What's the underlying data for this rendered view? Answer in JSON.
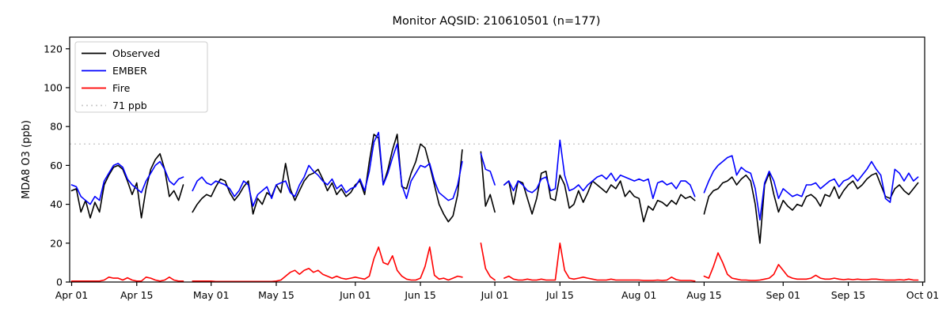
{
  "colors": {
    "observed": "#000000",
    "ember": "#0000ff",
    "fire": "#ff0000",
    "threshold": "#c9c9c9",
    "axis": "#000000",
    "legend_border": "#cccccc",
    "background": "#ffffff"
  },
  "legend": {
    "entries": [
      {
        "label": "Observed",
        "color": "#000000",
        "style": "solid"
      },
      {
        "label": "EMBER",
        "color": "#0000ff",
        "style": "solid"
      },
      {
        "label": "Fire",
        "color": "#ff0000",
        "style": "solid"
      },
      {
        "label": "71 ppb",
        "color": "#c9c9c9",
        "style": "dotted"
      }
    ],
    "position": "upper left"
  },
  "chart_data": {
    "type": "line",
    "title": "Monitor AQSID: 210610501 (n=177)",
    "xlabel": "",
    "ylabel": "MDA8 O3 (ppb)",
    "ylim": [
      0,
      126
    ],
    "yticks": [
      0,
      20,
      40,
      60,
      80,
      100,
      120
    ],
    "grid": false,
    "threshold_line": {
      "value": 71,
      "label": "71 ppb",
      "style": "dotted"
    },
    "x_start_date": "Apr 01",
    "x_end_date": "Oct 01",
    "x_days_total": 183,
    "xticks": [
      {
        "label": "Apr 01",
        "day": 0
      },
      {
        "label": "Apr 15",
        "day": 14
      },
      {
        "label": "May 01",
        "day": 30
      },
      {
        "label": "May 15",
        "day": 44
      },
      {
        "label": "Jun 01",
        "day": 61
      },
      {
        "label": "Jun 15",
        "day": 75
      },
      {
        "label": "Jul 01",
        "day": 91
      },
      {
        "label": "Jul 15",
        "day": 105
      },
      {
        "label": "Aug 01",
        "day": 122
      },
      {
        "label": "Aug 15",
        "day": 136
      },
      {
        "label": "Sep 01",
        "day": 153
      },
      {
        "label": "Sep 15",
        "day": 167
      },
      {
        "label": "Oct 01",
        "day": 183
      }
    ],
    "series": [
      {
        "name": "Observed",
        "color": "#000000",
        "values": [
          47,
          48,
          36,
          42,
          33,
          41,
          36,
          50,
          55,
          59,
          60,
          58,
          52,
          45,
          51,
          33,
          48,
          58,
          63,
          66,
          58,
          44,
          47,
          42,
          50,
          null,
          36,
          40,
          43,
          45,
          44,
          49,
          53,
          52,
          46,
          42,
          45,
          49,
          52,
          35,
          43,
          40,
          46,
          44,
          50,
          46,
          61,
          48,
          42,
          47,
          52,
          55,
          56,
          58,
          53,
          47,
          51,
          45,
          48,
          44,
          46,
          50,
          52,
          45,
          62,
          76,
          74,
          50,
          58,
          68,
          76,
          49,
          48,
          56,
          62,
          71,
          69,
          60,
          50,
          40,
          35,
          31,
          34,
          45,
          68,
          null,
          null,
          null,
          67,
          39,
          45,
          36,
          null,
          50,
          52,
          40,
          52,
          51,
          43,
          35,
          43,
          56,
          57,
          43,
          42,
          55,
          50,
          38,
          40,
          47,
          41,
          46,
          52,
          50,
          48,
          46,
          50,
          48,
          52,
          44,
          47,
          44,
          43,
          31,
          39,
          37,
          42,
          41,
          39,
          42,
          40,
          45,
          43,
          44,
          42,
          null,
          35,
          44,
          47,
          48,
          51,
          52,
          54,
          50,
          53,
          55,
          52,
          40,
          20,
          50,
          56,
          45,
          36,
          42,
          39,
          37,
          40,
          39,
          44,
          45,
          43,
          39,
          45,
          44,
          49,
          43,
          47,
          50,
          52,
          48,
          50,
          53,
          55,
          56,
          50,
          44,
          43,
          48,
          50,
          47,
          45,
          48,
          51
        ]
      },
      {
        "name": "EMBER",
        "color": "#0000ff",
        "values": [
          50,
          49,
          44,
          42,
          40,
          44,
          42,
          52,
          56,
          60,
          61,
          59,
          53,
          50,
          48,
          46,
          52,
          56,
          60,
          62,
          58,
          52,
          50,
          53,
          54,
          null,
          47,
          52,
          54,
          51,
          50,
          52,
          51,
          50,
          48,
          44,
          47,
          52,
          50,
          39,
          45,
          47,
          49,
          43,
          50,
          51,
          52,
          46,
          44,
          50,
          54,
          60,
          57,
          55,
          52,
          50,
          53,
          48,
          50,
          46,
          48,
          49,
          53,
          47,
          57,
          72,
          77,
          50,
          56,
          64,
          71,
          50,
          43,
          52,
          56,
          60,
          59,
          61,
          52,
          46,
          44,
          42,
          43,
          50,
          62,
          null,
          null,
          null,
          66,
          58,
          57,
          50,
          null,
          50,
          52,
          47,
          52,
          50,
          47,
          46,
          48,
          53,
          54,
          47,
          48,
          73,
          55,
          47,
          48,
          50,
          47,
          50,
          52,
          54,
          55,
          53,
          56,
          52,
          55,
          54,
          53,
          52,
          53,
          52,
          53,
          43,
          51,
          52,
          50,
          51,
          48,
          52,
          52,
          50,
          44,
          null,
          46,
          52,
          57,
          60,
          62,
          64,
          65,
          55,
          59,
          57,
          56,
          48,
          32,
          51,
          57,
          52,
          43,
          48,
          46,
          44,
          45,
          44,
          50,
          50,
          51,
          48,
          50,
          52,
          53,
          49,
          52,
          53,
          55,
          52,
          55,
          58,
          62,
          58,
          55,
          43,
          41,
          58,
          56,
          52,
          56,
          52,
          54
        ]
      },
      {
        "name": "Fire",
        "color": "#ff0000",
        "values": [
          0.5,
          0.5,
          0.5,
          0.5,
          0.5,
          0.5,
          0.5,
          1,
          2.5,
          2,
          2,
          1,
          2.2,
          1,
          0.5,
          0.5,
          2.5,
          2,
          1,
          0.5,
          1,
          2.5,
          1,
          0.5,
          0.5,
          null,
          0.5,
          0.5,
          0.5,
          0.5,
          0.5,
          0.3,
          0.3,
          0.3,
          0.3,
          0.3,
          0.3,
          0.3,
          0.3,
          0.3,
          0.3,
          0.3,
          0.3,
          0.3,
          0.5,
          1,
          3,
          5,
          6,
          4,
          6,
          7,
          5,
          6,
          4,
          3,
          2,
          3,
          2,
          1.5,
          2,
          2.5,
          2,
          1.5,
          3,
          12,
          18,
          10,
          9,
          13.5,
          6,
          3,
          1.5,
          1,
          1,
          2,
          8,
          18,
          3.5,
          1.5,
          2,
          1,
          2,
          3,
          2.5,
          null,
          null,
          null,
          20,
          7,
          2.8,
          1,
          null,
          2,
          3,
          1.5,
          1,
          1,
          1.5,
          1,
          1,
          1.5,
          1,
          1,
          1,
          20,
          6,
          2,
          1.5,
          2,
          2.5,
          2,
          1.5,
          1,
          1,
          1,
          1.5,
          1,
          1,
          1,
          1,
          1,
          1,
          0.8,
          0.8,
          0.8,
          1,
          0.8,
          1,
          2.5,
          1.2,
          0.8,
          0.8,
          0.8,
          0.5,
          null,
          3,
          2,
          8,
          15,
          10,
          4,
          2,
          1.5,
          1,
          1,
          0.8,
          0.8,
          1,
          1.5,
          2,
          4,
          9,
          6,
          3,
          2,
          1.5,
          1.5,
          1.5,
          2,
          3.5,
          2,
          1.5,
          1.5,
          2,
          1.5,
          1.2,
          1.5,
          1.2,
          1.5,
          1.2,
          1.2,
          1.5,
          1.5,
          1.2,
          1,
          1,
          1,
          1.2,
          1,
          1.5,
          1,
          1
        ]
      }
    ]
  }
}
